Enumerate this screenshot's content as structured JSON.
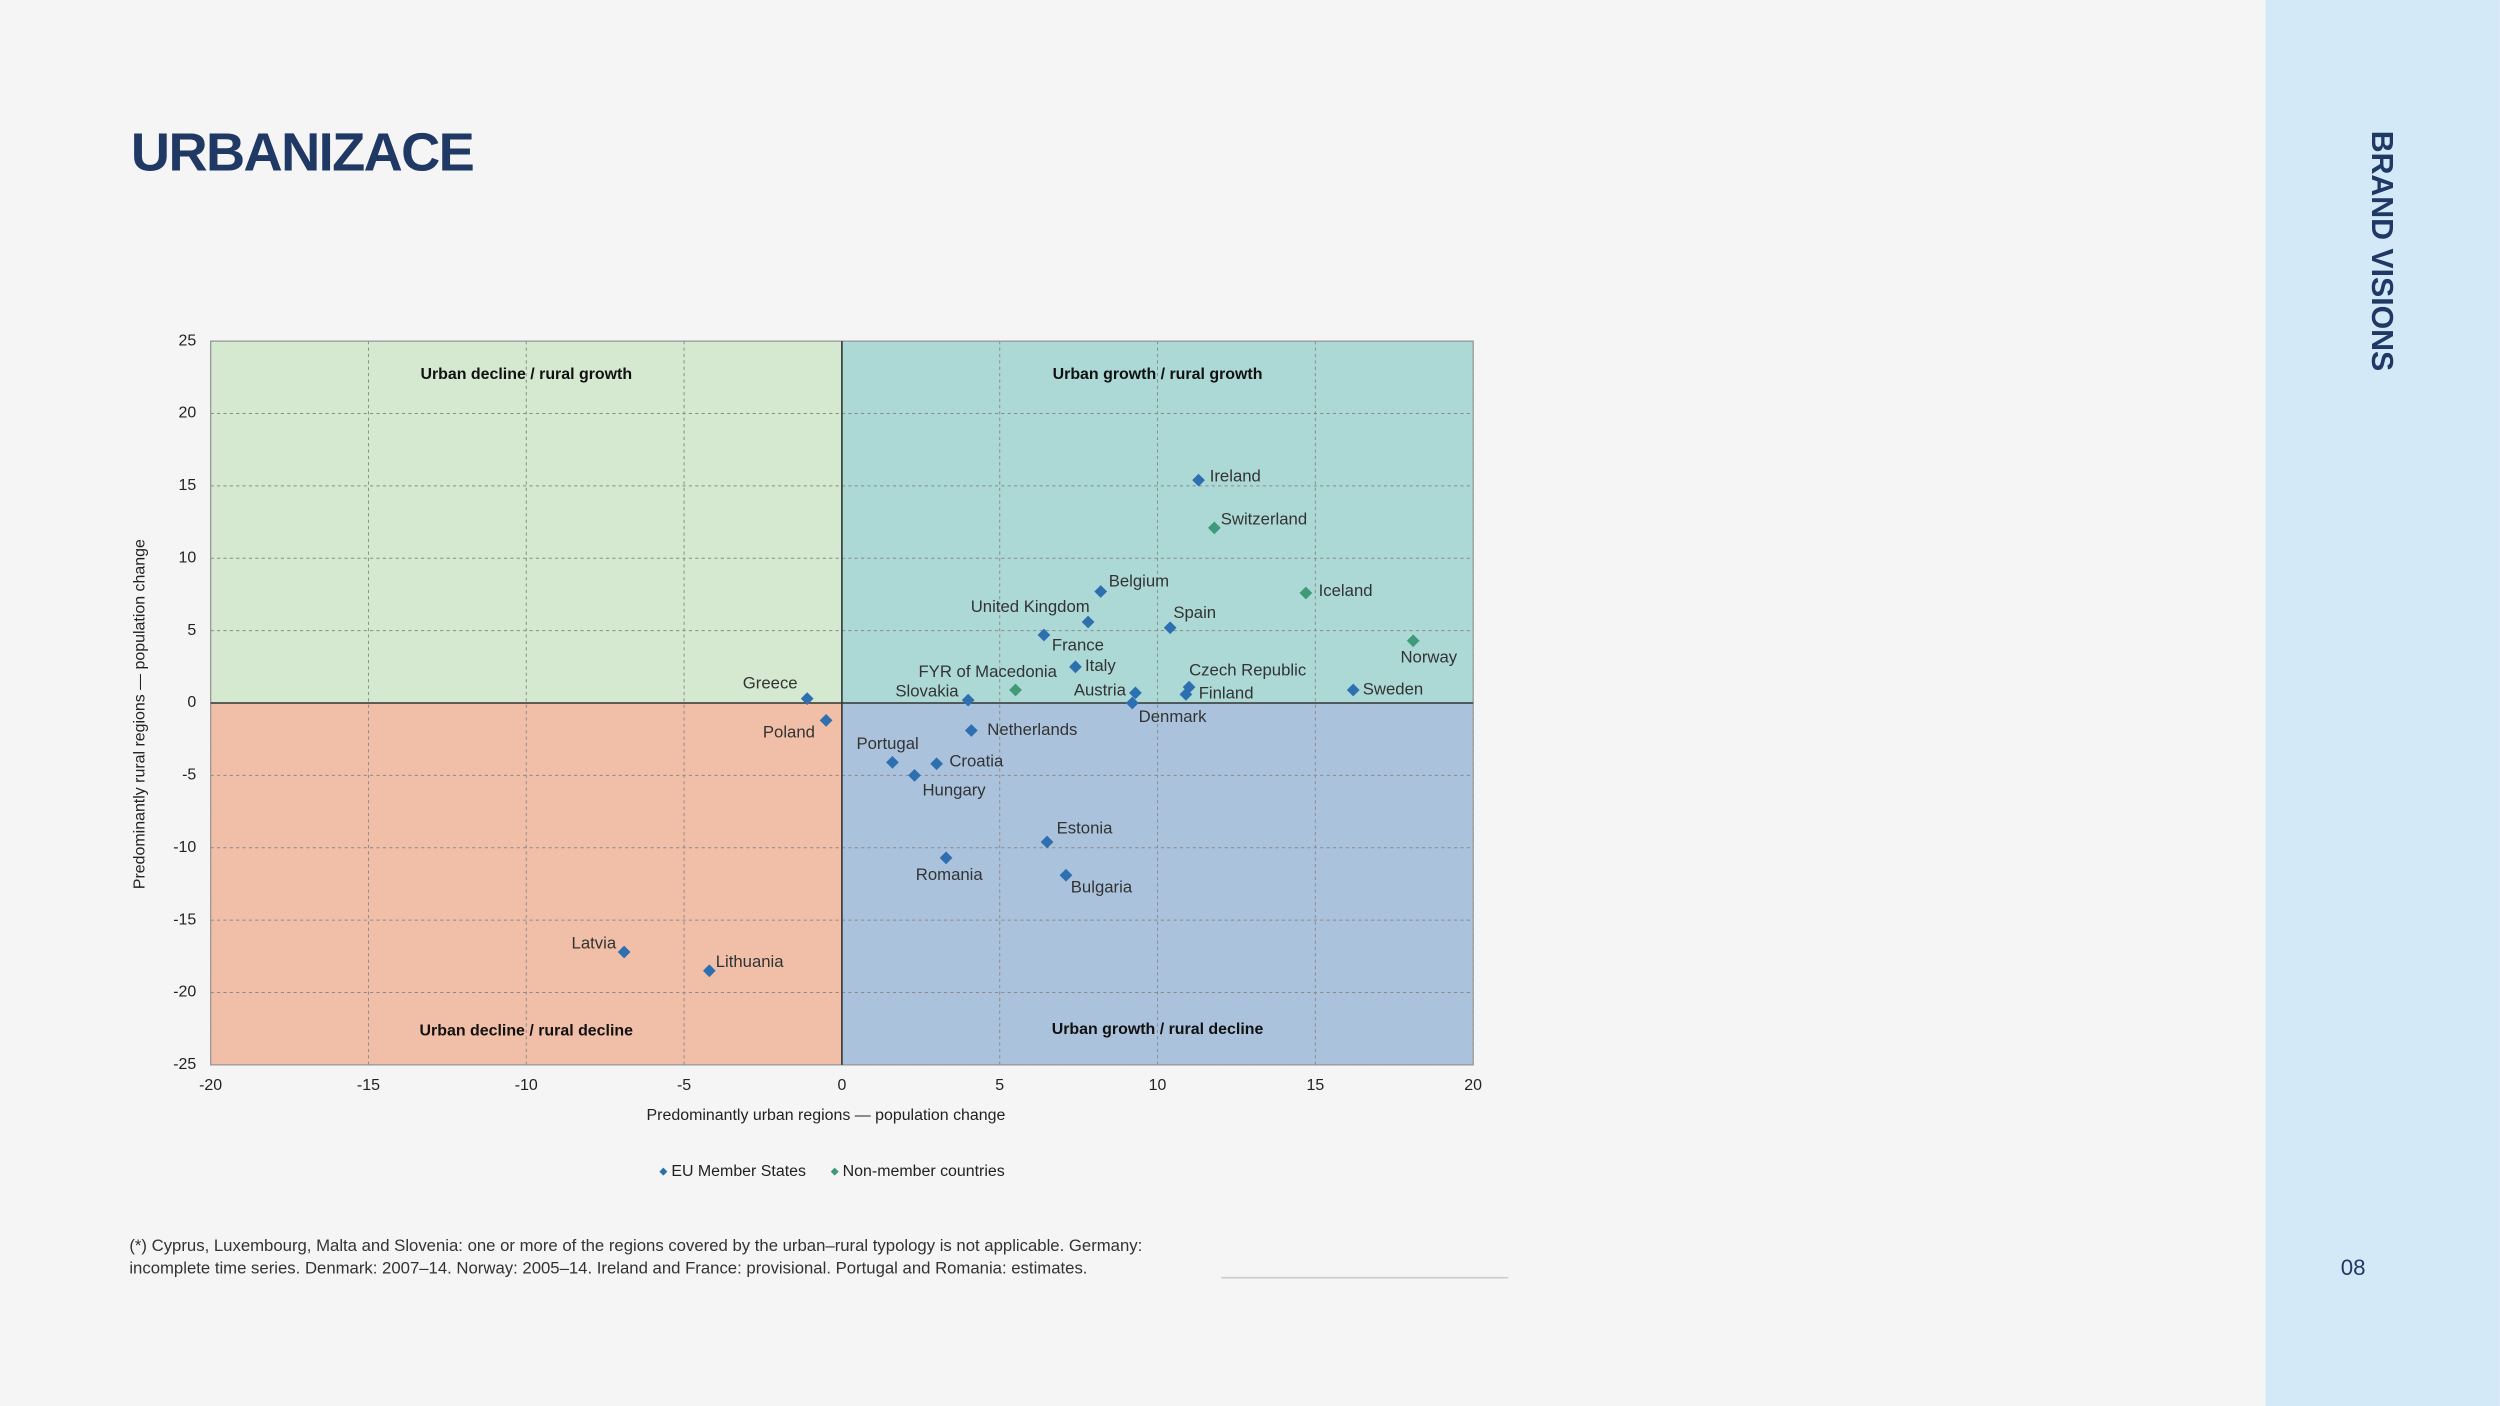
{
  "page": {
    "title": "URBANIZACE",
    "sidebar": "BRAND VISIONS",
    "page_number": "08",
    "footnote": [
      "(*) Cyprus, Luxembourg, Malta and Slovenia: one or more of the regions covered by the urban–rural typology is not applicable. Germany:",
      "incomplete time series. Denmark: 2007–14. Norway: 2005–14. Ireland and France: provisional. Portugal and Romania: estimates."
    ]
  },
  "chart_data": {
    "type": "scatter",
    "x_label": "Predominantly urban regions — population change",
    "y_label": "Predominantly rural regions — population change",
    "xlim": [
      -20,
      20
    ],
    "ylim": [
      -25,
      25
    ],
    "xticks": [
      -20,
      -15,
      -10,
      -5,
      0,
      5,
      10,
      15,
      20
    ],
    "yticks": [
      -25,
      -20,
      -15,
      -10,
      -5,
      0,
      5,
      10,
      15,
      20,
      25
    ],
    "grid": true,
    "quadrant_labels": {
      "top_left": "Urban decline / rural growth",
      "top_right": "Urban growth / rural growth",
      "bottom_left": "Urban decline / rural decline",
      "bottom_right": "Urban growth / rural decline"
    },
    "series": [
      {
        "name": "EU Member States",
        "color": "#2e6fb0",
        "labels": [
          "Ireland",
          "Belgium",
          "United Kingdom",
          "Spain",
          "France",
          "Italy",
          "Czech Republic",
          "Sweden",
          "Austria",
          "Finland",
          "Slovakia",
          "Denmark",
          "Greece",
          "Poland",
          "Netherlands",
          "Portugal",
          "Croatia",
          "Hungary",
          "Estonia",
          "Romania",
          "Bulgaria",
          "Latvia",
          "Lithuania"
        ],
        "x": [
          11.3,
          8.2,
          7.8,
          10.4,
          6.4,
          7.4,
          11.0,
          16.2,
          9.3,
          10.9,
          4.0,
          9.2,
          -1.1,
          -0.5,
          4.1,
          1.6,
          3.0,
          2.3,
          6.5,
          3.3,
          7.1,
          -6.9,
          -4.2
        ],
        "values": [
          15.4,
          7.7,
          5.6,
          5.2,
          4.7,
          2.5,
          1.1,
          0.9,
          0.7,
          0.6,
          0.2,
          0.0,
          0.3,
          -1.2,
          -1.9,
          -4.1,
          -4.2,
          -5.0,
          -9.6,
          -10.7,
          -11.9,
          -17.2,
          -18.5
        ]
      },
      {
        "name": "Non-member countries",
        "color": "#3f9a78",
        "labels": [
          "Switzerland",
          "Iceland",
          "Norway",
          "FYR of Macedonia"
        ],
        "x": [
          11.8,
          14.7,
          18.1,
          5.5
        ],
        "values": [
          12.1,
          7.6,
          4.3,
          0.9
        ]
      }
    ]
  }
}
